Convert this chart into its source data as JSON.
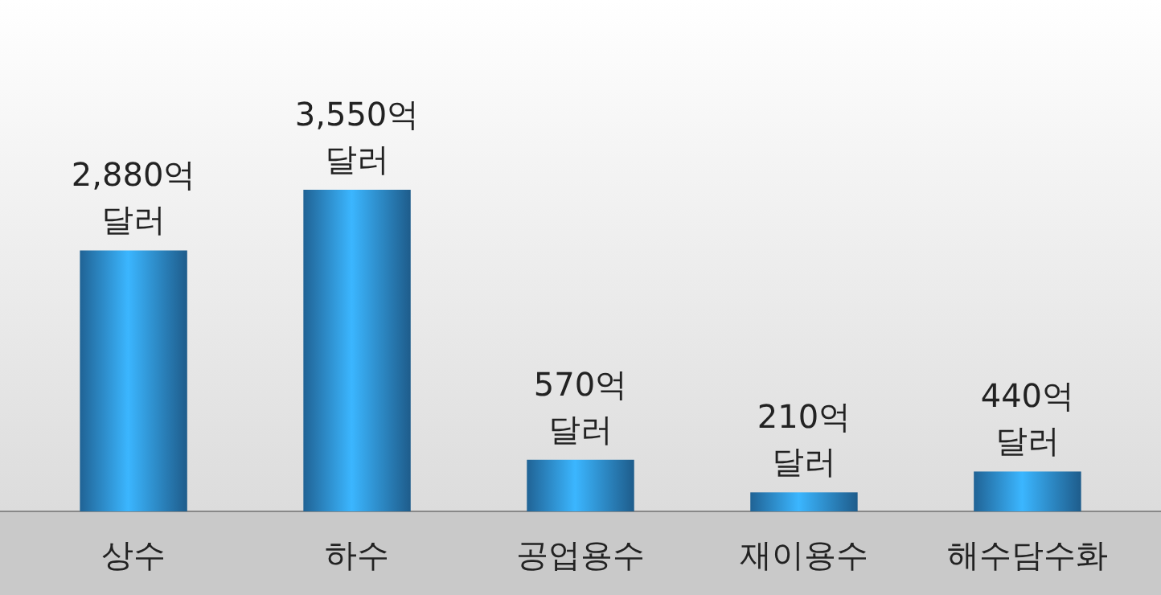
{
  "chart_data": {
    "type": "bar",
    "categories": [
      "상수",
      "하수",
      "공업용수",
      "재이용수",
      "해수담수화"
    ],
    "values": [
      2880,
      3550,
      570,
      210,
      440
    ],
    "value_labels": [
      "2,880억 달러",
      "3,550억 달러",
      "570억 달러",
      "210억 달러",
      "440억 달러"
    ],
    "color": "#2b84c6"
  }
}
